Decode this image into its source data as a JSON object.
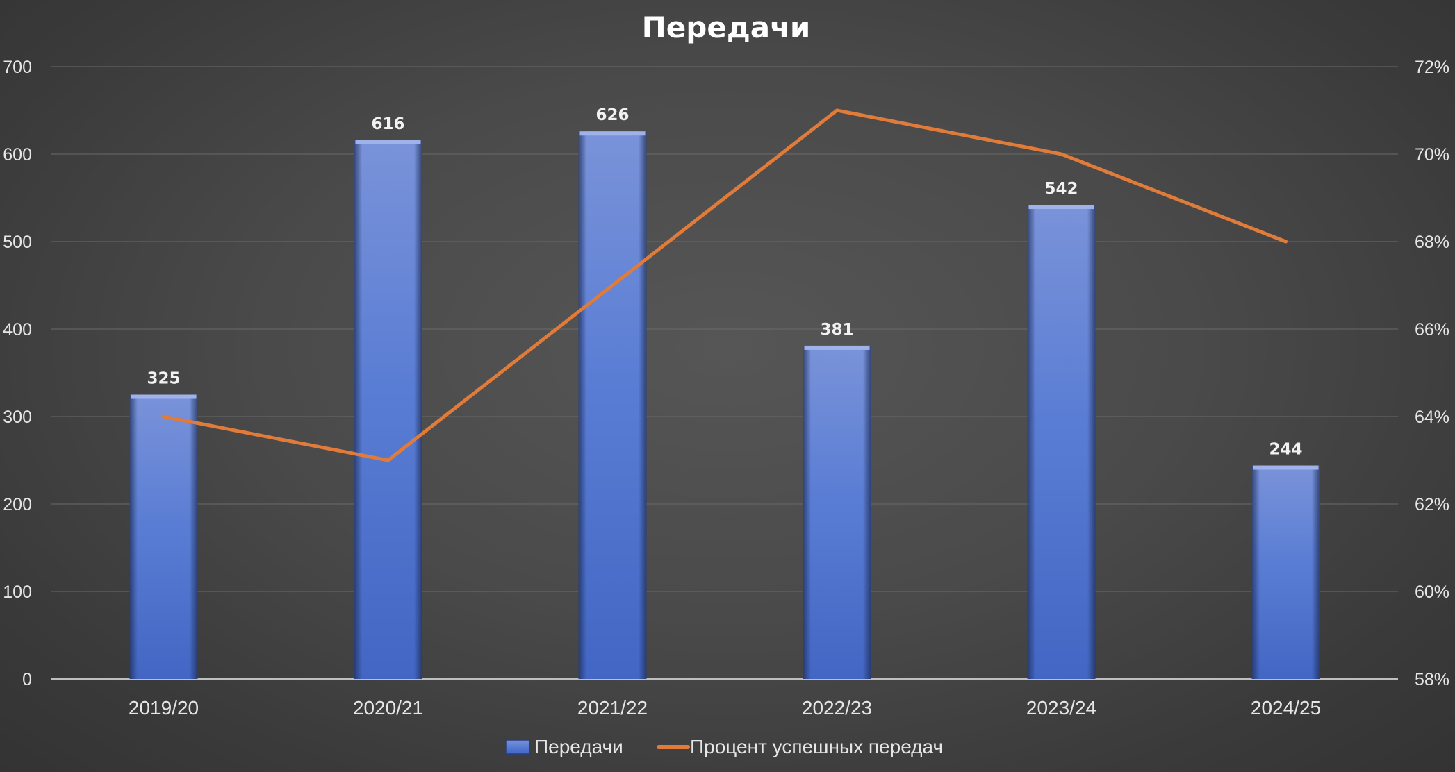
{
  "chart_data": {
    "type": "bar",
    "title": "Передачи",
    "categories": [
      "2019/20",
      "2020/21",
      "2021/22",
      "2022/23",
      "2023/24",
      "2024/25"
    ],
    "series": [
      {
        "name": "Передачи",
        "type": "bar",
        "axis": "left",
        "color": "#4f74d4",
        "values": [
          325,
          616,
          626,
          381,
          542,
          244
        ],
        "data_labels": [
          "325",
          "616",
          "626",
          "381",
          "542",
          "244"
        ]
      },
      {
        "name": "Процент успешных передач",
        "type": "line",
        "axis": "right",
        "color": "#e07b39",
        "values": [
          0.64,
          0.63,
          0.67,
          0.71,
          0.7,
          0.68
        ]
      }
    ],
    "y_left": {
      "lim": [
        0,
        700
      ],
      "ticks": [
        0,
        100,
        200,
        300,
        400,
        500,
        600,
        700
      ],
      "tick_labels": [
        "0",
        "100",
        "200",
        "300",
        "400",
        "500",
        "600",
        "700"
      ]
    },
    "y_right": {
      "lim": [
        0.58,
        0.72
      ],
      "ticks": [
        0.58,
        0.6,
        0.62,
        0.64,
        0.66,
        0.68,
        0.7,
        0.72
      ],
      "tick_labels": [
        "58%",
        "60%",
        "62%",
        "64%",
        "66%",
        "68%",
        "70%",
        "72%"
      ]
    },
    "grid": true,
    "legend_position": "bottom"
  }
}
